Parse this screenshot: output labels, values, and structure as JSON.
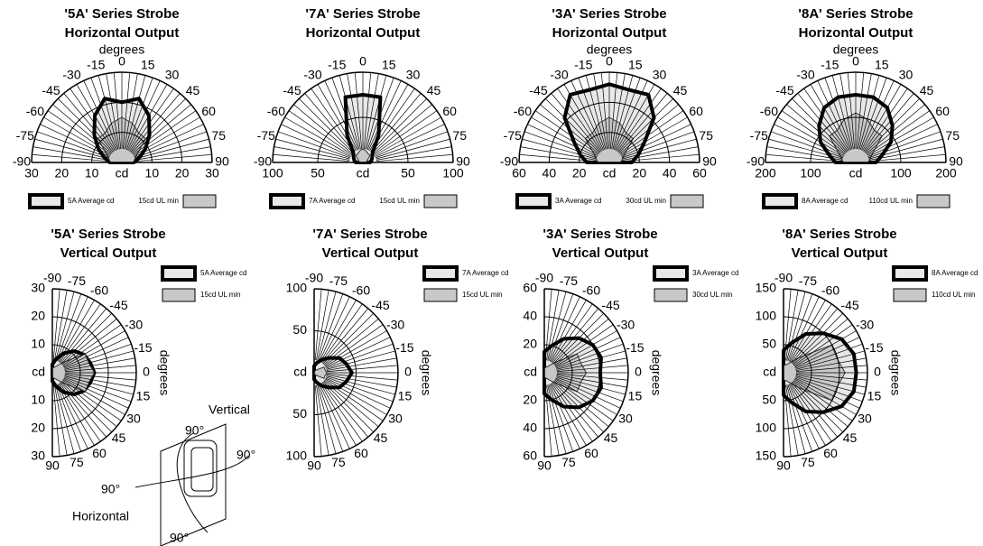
{
  "chart_data": [
    {
      "type": "polar",
      "orientation": "horizontal",
      "title": "'5A' Series Strobe",
      "subtitle": "Horizontal Output",
      "x_label": "degrees",
      "r_label": "cd",
      "x": [
        -90,
        -75,
        -60,
        -45,
        -30,
        -15,
        0,
        15,
        30,
        45,
        60,
        75,
        90
      ],
      "rlim": [
        0,
        30
      ],
      "rticks": [
        10,
        20,
        30
      ],
      "series": [
        {
          "name": "5A Average cd",
          "color": "#e8e8e8",
          "values": [
            4,
            6,
            9,
            13,
            18,
            22,
            20,
            22,
            18,
            13,
            9,
            6,
            4
          ]
        },
        {
          "name": "15cd UL min",
          "color": "#c8c8c8",
          "values": [
            3.75,
            4.5,
            6,
            11.25,
            11.25,
            13.5,
            15,
            13.5,
            11.25,
            11.25,
            6,
            4.5,
            3.75
          ]
        }
      ]
    },
    {
      "type": "polar",
      "orientation": "horizontal",
      "title": "'7A' Series Strobe",
      "subtitle": "Horizontal Output",
      "r_label": "cd",
      "x": [
        -90,
        -75,
        -60,
        -45,
        -30,
        -15,
        0,
        15,
        30,
        45,
        60,
        75,
        90
      ],
      "rlim": [
        0,
        100
      ],
      "rticks": [
        50,
        100
      ],
      "series": [
        {
          "name": "7A Average cd",
          "color": "#e8e8e8",
          "values": [
            8,
            10,
            12,
            15,
            35,
            75,
            75,
            75,
            35,
            15,
            12,
            10,
            8
          ]
        },
        {
          "name": "15cd UL min",
          "color": "#c8c8c8",
          "values": [
            3.75,
            4.5,
            6,
            11.25,
            11.25,
            13.5,
            15,
            13.5,
            11.25,
            11.25,
            6,
            4.5,
            3.75
          ]
        }
      ]
    },
    {
      "type": "polar",
      "orientation": "horizontal",
      "title": "'3A' Series Strobe",
      "subtitle": "Horizontal Output",
      "x_label": "degrees",
      "r_label": "cd",
      "x": [
        -90,
        -75,
        -60,
        -45,
        -30,
        -15,
        0,
        15,
        30,
        45,
        60,
        75,
        90
      ],
      "rlim": [
        0,
        60
      ],
      "rticks": [
        20,
        40,
        60
      ],
      "series": [
        {
          "name": "3A Average cd",
          "color": "#e8e8e8",
          "values": [
            15,
            20,
            27,
            42,
            52,
            50,
            52,
            50,
            52,
            42,
            27,
            20,
            15
          ]
        },
        {
          "name": "30cd UL min",
          "color": "#c8c8c8",
          "values": [
            7.5,
            9,
            12,
            22.5,
            22.5,
            27,
            30,
            27,
            22.5,
            22.5,
            12,
            9,
            7.5
          ]
        }
      ]
    },
    {
      "type": "polar",
      "orientation": "horizontal",
      "title": "'8A' Series Strobe",
      "subtitle": "Horizontal Output",
      "x_label": "degrees",
      "r_label": "cd",
      "x": [
        -90,
        -75,
        -60,
        -45,
        -30,
        -15,
        0,
        15,
        30,
        45,
        60,
        75,
        90
      ],
      "rlim": [
        0,
        200
      ],
      "rticks": [
        100,
        200
      ],
      "series": [
        {
          "name": "8A Average cd",
          "color": "#e8e8e8",
          "values": [
            45,
            60,
            90,
            115,
            140,
            150,
            150,
            150,
            140,
            115,
            90,
            60,
            45
          ]
        },
        {
          "name": "110cd UL min",
          "color": "#c8c8c8",
          "values": [
            27.5,
            33,
            44,
            82.5,
            82.5,
            99,
            110,
            99,
            82.5,
            82.5,
            44,
            33,
            27.5
          ]
        }
      ]
    },
    {
      "type": "polar",
      "orientation": "vertical",
      "title": "'5A' Series Strobe",
      "subtitle": "Vertical Output",
      "x_label": "degrees",
      "r_label": "cd",
      "x": [
        -90,
        -75,
        -60,
        -45,
        -30,
        -15,
        0,
        15,
        30,
        45,
        60,
        75,
        90
      ],
      "rlim": [
        0,
        30
      ],
      "rticks": [
        10,
        20,
        30
      ],
      "series": [
        {
          "name": "5A Average cd",
          "color": "#e8e8e8",
          "values": [
            3,
            5,
            8,
            11,
            13,
            14,
            15,
            14,
            13,
            11,
            8,
            5,
            3
          ]
        },
        {
          "name": "15cd UL min",
          "color": "#c8c8c8",
          "values": [
            1.8,
            1.95,
            2.7,
            5.1,
            13.5,
            13.5,
            15,
            13.5,
            13.5,
            5.1,
            2.7,
            1.95,
            1.8
          ]
        }
      ]
    },
    {
      "type": "polar",
      "orientation": "vertical",
      "title": "'7A' Series Strobe",
      "subtitle": "Vertical Output",
      "x_label": "degrees",
      "r_label": "cd",
      "x": [
        -90,
        -75,
        -60,
        -45,
        -30,
        -15,
        0,
        15,
        30,
        45,
        60,
        75,
        90
      ],
      "rlim": [
        0,
        100
      ],
      "rticks": [
        50,
        100
      ],
      "series": [
        {
          "name": "7A Average cd",
          "color": "#e8e8e8",
          "values": [
            8,
            12,
            18,
            25,
            35,
            40,
            45,
            40,
            35,
            25,
            18,
            12,
            8
          ]
        },
        {
          "name": "15cd UL min",
          "color": "#c8c8c8",
          "values": [
            1.8,
            1.95,
            2.7,
            5.1,
            13.5,
            13.5,
            15,
            13.5,
            13.5,
            5.1,
            2.7,
            1.95,
            1.8
          ]
        }
      ]
    },
    {
      "type": "polar",
      "orientation": "vertical",
      "title": "'3A' Series Strobe",
      "subtitle": "Vertical Output",
      "x_label": "degrees",
      "r_label": "cd",
      "x": [
        -90,
        -75,
        -60,
        -45,
        -30,
        -15,
        0,
        15,
        30,
        45,
        60,
        75,
        90
      ],
      "rlim": [
        0,
        60
      ],
      "rticks": [
        20,
        40,
        60
      ],
      "series": [
        {
          "name": "3A Average cd",
          "color": "#e8e8e8",
          "values": [
            15,
            20,
            28,
            35,
            40,
            42,
            40,
            42,
            40,
            35,
            28,
            20,
            15
          ]
        },
        {
          "name": "30cd UL min",
          "color": "#c8c8c8",
          "values": [
            3.6,
            3.9,
            5.4,
            10.2,
            27,
            27,
            30,
            27,
            27,
            10.2,
            5.4,
            3.9,
            3.6
          ]
        }
      ]
    },
    {
      "type": "polar",
      "orientation": "vertical",
      "title": "'8A' Series Strobe",
      "subtitle": "Vertical Output",
      "x_label": "degrees",
      "r_label": "cd",
      "x": [
        -90,
        -75,
        -60,
        -45,
        -30,
        -15,
        0,
        15,
        30,
        45,
        60,
        75,
        90
      ],
      "rlim": [
        0,
        150
      ],
      "rticks": [
        50,
        100,
        150
      ],
      "series": [
        {
          "name": "8A Average cd",
          "color": "#e8e8e8",
          "values": [
            40,
            55,
            80,
            100,
            120,
            130,
            130,
            130,
            120,
            100,
            80,
            55,
            40
          ]
        },
        {
          "name": "110cd UL min",
          "color": "#c8c8c8",
          "values": [
            13.2,
            14.3,
            19.8,
            37.4,
            99,
            99,
            110,
            99,
            99,
            37.4,
            19.8,
            14.3,
            13.2
          ]
        }
      ]
    }
  ],
  "diagram": {
    "labels": [
      "Vertical",
      "90°",
      "90°",
      "90°",
      "Horizontal",
      "90°"
    ]
  }
}
